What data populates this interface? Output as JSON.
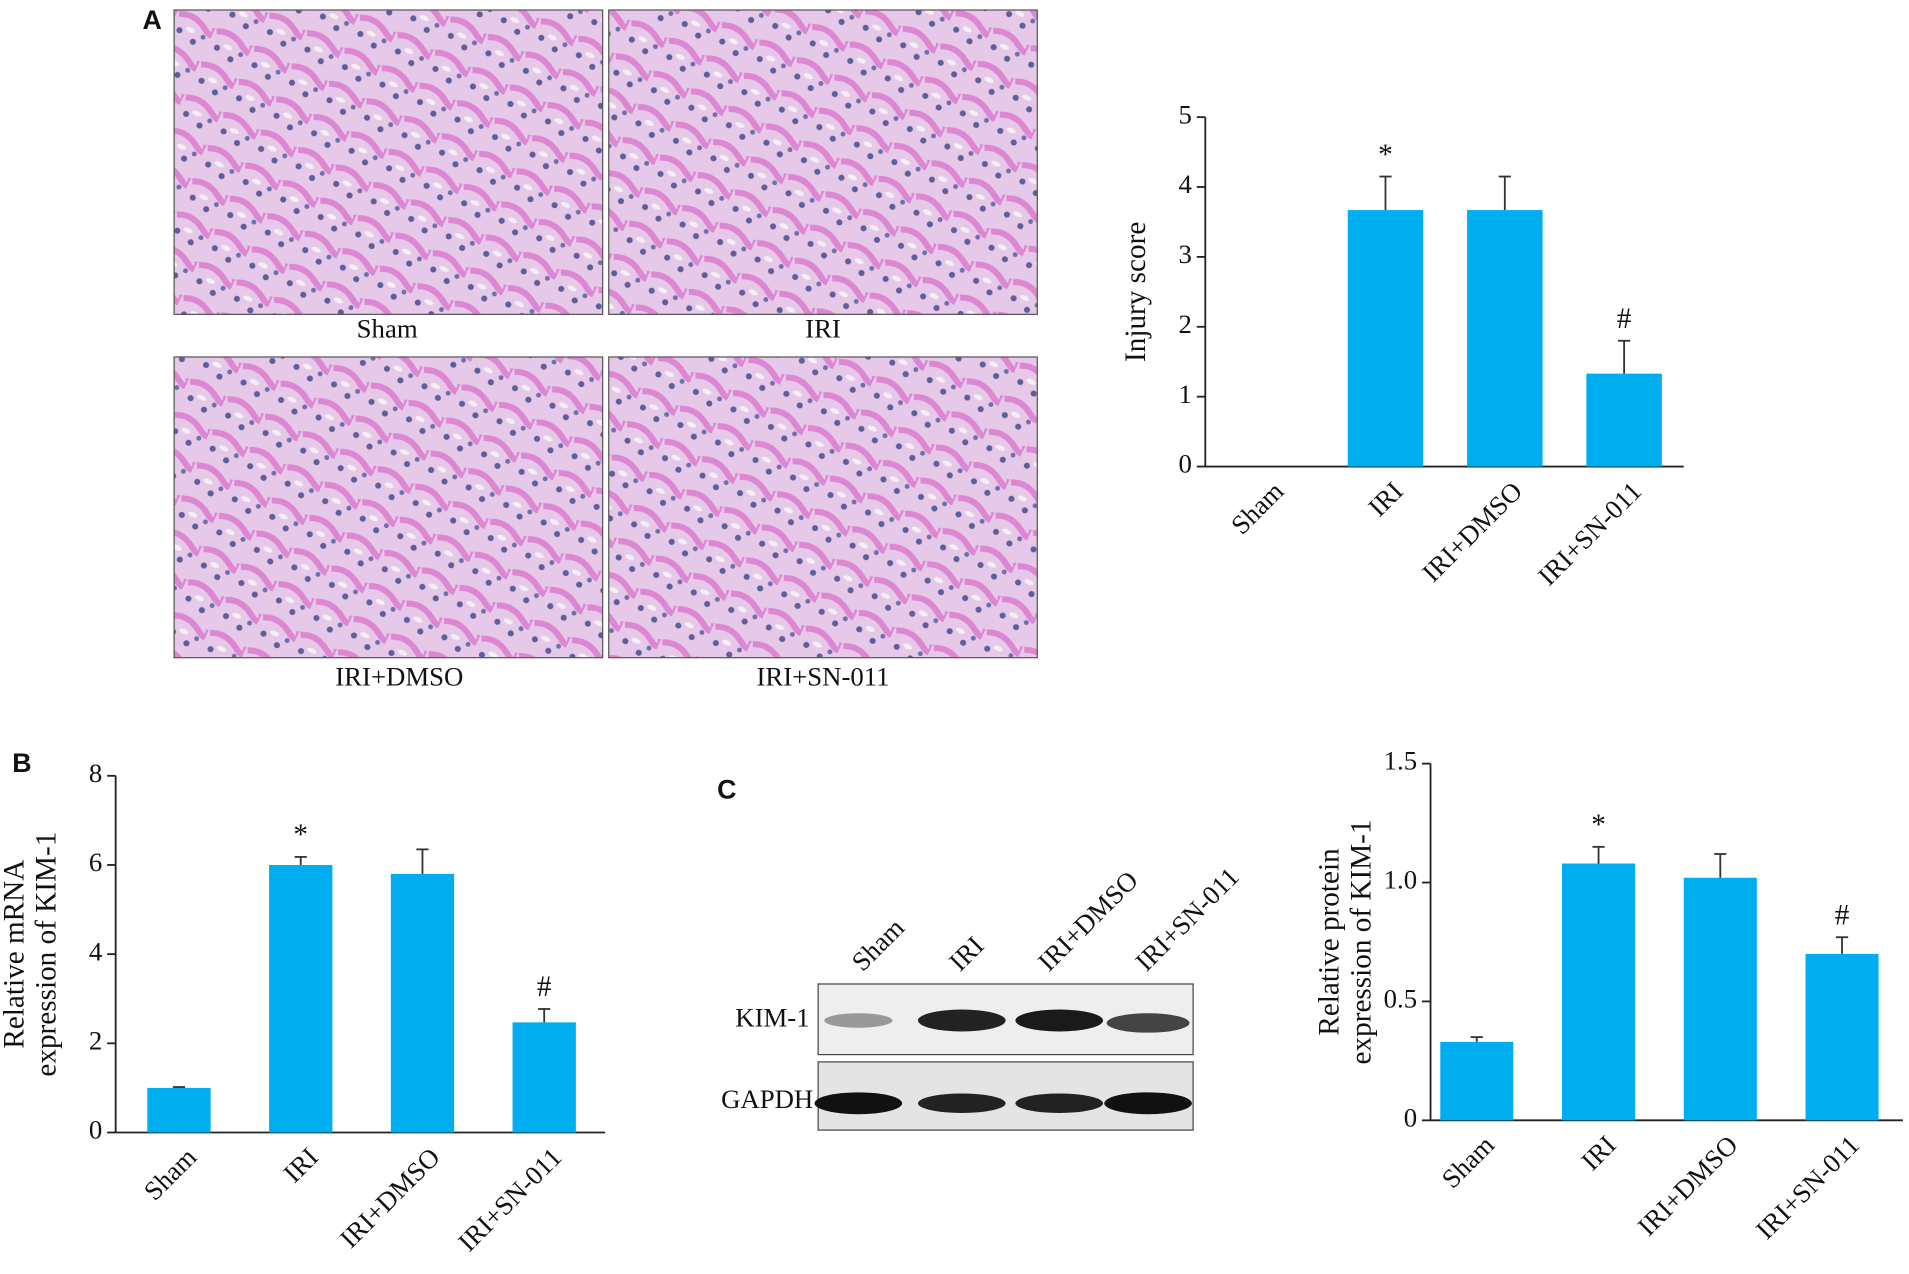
{
  "panel_labels": [
    "A",
    "B",
    "C"
  ],
  "histology": {
    "captions": [
      "Sham",
      "IRI",
      "IRI+DMSO",
      "IRI+SN-011"
    ]
  },
  "western_blot": {
    "lanes": [
      "Sham",
      "IRI",
      "IRI+DMSO",
      "IRI+SN-011"
    ],
    "rows": [
      "KIM-1",
      "GAPDH"
    ]
  },
  "chart_data": [
    {
      "type": "bar",
      "ylabel": [
        "Injury score"
      ],
      "categories": [
        "Sham",
        "IRI",
        "IRI+DMSO",
        "IRI+SN-011"
      ],
      "values": [
        0,
        3.67,
        3.67,
        1.33
      ],
      "errors": [
        0,
        0.48,
        0.48,
        0.47
      ],
      "annotations": [
        null,
        "*",
        null,
        "#"
      ],
      "color": "#00aeef",
      "ylim": [
        0,
        5
      ],
      "yticks": [
        0,
        1,
        2,
        3,
        4,
        5
      ]
    },
    {
      "type": "bar",
      "ylabel": [
        "Relative mRNA",
        "expression of KIM-1"
      ],
      "categories": [
        "Sham",
        "IRI",
        "IRI+DMSO",
        "IRI+SN-011"
      ],
      "values": [
        1.0,
        6.0,
        5.8,
        2.47
      ],
      "errors": [
        0.02,
        0.18,
        0.55,
        0.3
      ],
      "annotations": [
        null,
        "*",
        null,
        "#"
      ],
      "color": "#00aeef",
      "ylim": [
        0,
        8
      ],
      "yticks": [
        0,
        2,
        4,
        6,
        8
      ]
    },
    {
      "type": "bar",
      "ylabel": [
        "Relative protein",
        "expression of KIM-1"
      ],
      "categories": [
        "Sham",
        "IRI",
        "IRI+DMSO",
        "IRI+SN-011"
      ],
      "values": [
        0.33,
        1.08,
        1.02,
        0.7
      ],
      "errors": [
        0.02,
        0.07,
        0.1,
        0.07
      ],
      "annotations": [
        null,
        "*",
        null,
        "#"
      ],
      "color": "#00aeef",
      "ylim": [
        0,
        1.5
      ],
      "yticks": [
        0,
        0.5,
        {
          "value": 1,
          "label": "1.0"
        },
        1.5
      ]
    }
  ]
}
